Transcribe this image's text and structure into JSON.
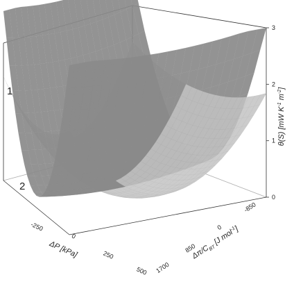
{
  "chart_data": {
    "type": "surface",
    "x_axis": {
      "label": "ΔP [kPa]",
      "ticks": [
        "-250",
        "0",
        "250",
        "500"
      ],
      "range": [
        -500,
        500
      ]
    },
    "y_axis": {
      "label_prefix": "Δπ/C",
      "label_sub": "BT",
      "label_suffix": " [J mol",
      "label_sup": "-1",
      "label_end": "]",
      "ticks": [
        "-850",
        "0",
        "850",
        "1700"
      ],
      "range": [
        -1700,
        1700
      ]
    },
    "z_axis": {
      "label_prefix": "θ(S) [mW K",
      "label_sup1": "-1",
      "label_mid": " m",
      "label_sup2": "-2",
      "label_end": "]",
      "ticks": [
        "0",
        "1",
        "2",
        "3"
      ],
      "range": [
        0,
        3
      ]
    },
    "series": [
      {
        "name": "1",
        "description_visible": "steep paraboloid",
        "min_at": [
          0,
          0
        ],
        "value_at_corner_max": 3
      },
      {
        "name": "2",
        "description_visible": "shallow paraboloid",
        "min_at": [
          0,
          0
        ],
        "value_at_corner_max": 2
      }
    ],
    "colors": {
      "surface1": "#8a8a8a",
      "surface2": "#c9c9c9",
      "frame": "#333333"
    }
  }
}
